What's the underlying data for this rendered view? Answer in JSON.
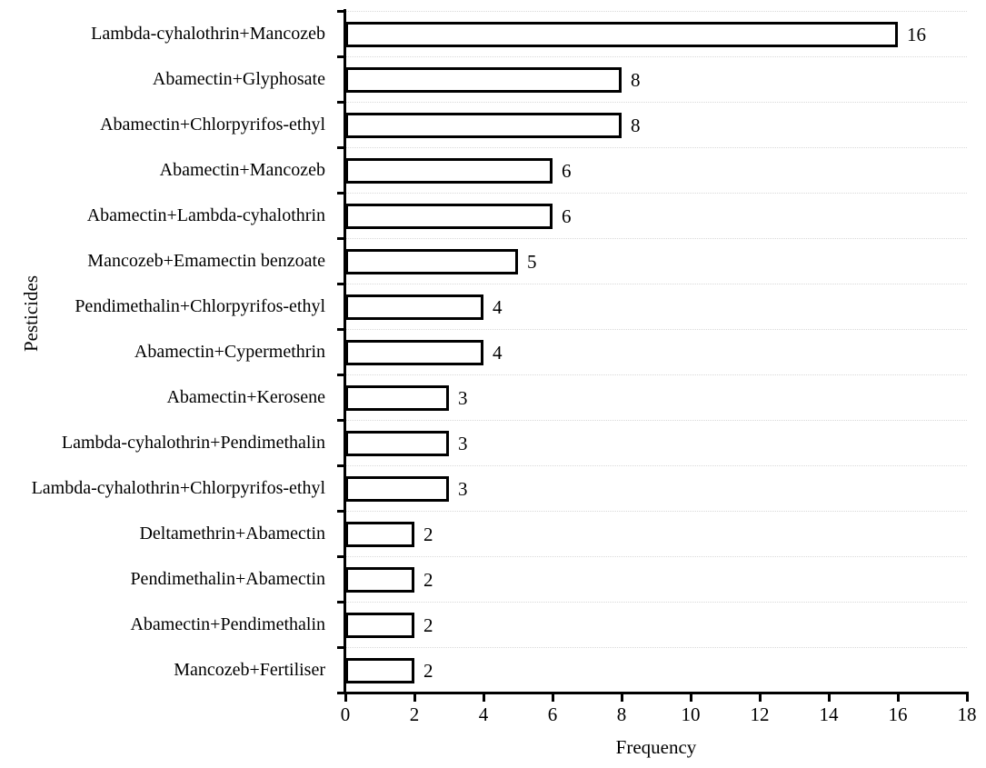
{
  "chart_data": {
    "type": "bar",
    "orientation": "horizontal",
    "title": "",
    "xlabel": "Frequency",
    "ylabel": "Pesticides",
    "xlim": [
      0,
      18
    ],
    "xticks": [
      0,
      2,
      4,
      6,
      8,
      10,
      12,
      14,
      16,
      18
    ],
    "grid": "horizontal-dotted-category-boundaries",
    "legend_position": "none",
    "bar_fill": "#ffffff",
    "bar_border_color": "#000000",
    "gridline_color": "#d9d9d9",
    "axis_color": "#000000",
    "categories": [
      "Lambda-cyhalothrin+Mancozeb",
      "Abamectin+Glyphosate",
      "Abamectin+Chlorpyrifos-ethyl",
      "Abamectin+Mancozeb",
      "Abamectin+Lambda-cyhalothrin",
      "Mancozeb+Emamectin benzoate",
      "Pendimethalin+Chlorpyrifos-ethyl",
      "Abamectin+Cypermethrin",
      "Abamectin+Kerosene",
      "Lambda-cyhalothrin+Pendimethalin",
      "Lambda-cyhalothrin+Chlorpyrifos-ethyl",
      "Deltamethrin+Abamectin",
      "Pendimethalin+Abamectin",
      "Abamectin+Pendimethalin",
      "Mancozeb+Fertiliser"
    ],
    "values": [
      16,
      8,
      8,
      6,
      6,
      5,
      4,
      4,
      3,
      3,
      3,
      2,
      2,
      2,
      2
    ],
    "data_labels": [
      "16",
      "8",
      "8",
      "6",
      "6",
      "5",
      "4",
      "4",
      "3",
      "3",
      "3",
      "2",
      "2",
      "2",
      "2"
    ]
  }
}
